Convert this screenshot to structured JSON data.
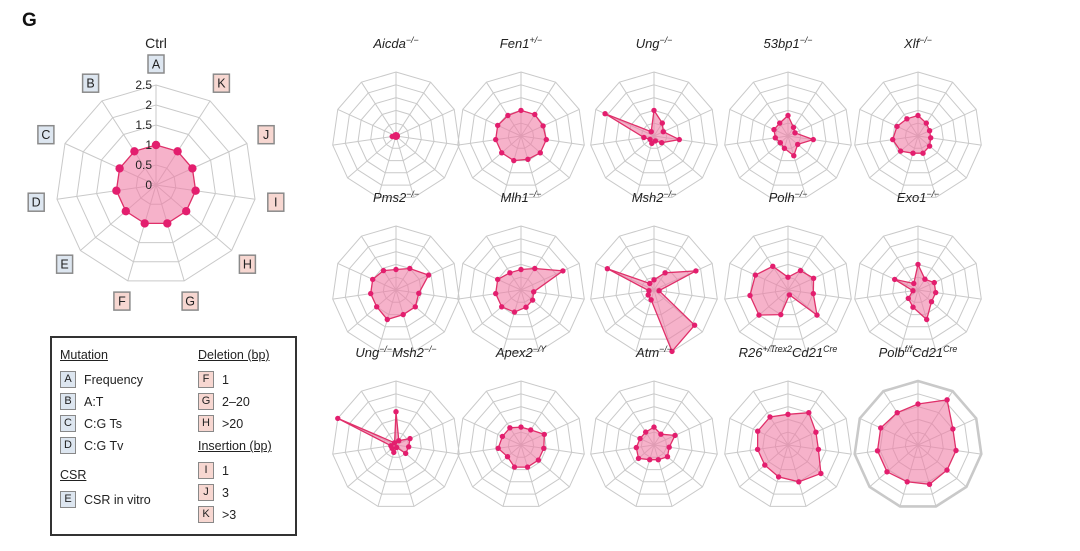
{
  "panel_label": "G",
  "colors": {
    "grid": "#c9c9c9",
    "fill": "#f07ea7",
    "stroke": "#e0306a",
    "point": "#e31e6e",
    "key_mutation_bg": "#dde6f0",
    "key_indel_bg": "#f7d7d1"
  },
  "axis_keys": [
    "A",
    "K",
    "J",
    "I",
    "H",
    "G",
    "F",
    "E",
    "D",
    "C",
    "B"
  ],
  "axis_key_groups": [
    "mutation",
    "insertion",
    "insertion",
    "insertion",
    "deletion",
    "deletion",
    "deletion",
    "csr",
    "mutation",
    "mutation",
    "mutation"
  ],
  "chart_data": [
    {
      "type": "radar",
      "title": "Ctrl",
      "title_sup": "",
      "rlim": [
        0,
        2.5
      ],
      "r_ticks": [
        "0",
        "0.5",
        "1",
        "1.5",
        "2",
        "2.5"
      ],
      "axes": [
        "A",
        "K",
        "J",
        "I",
        "H",
        "G",
        "F",
        "E",
        "D",
        "C",
        "B"
      ],
      "values": [
        1.0,
        1.0,
        1.0,
        1.0,
        1.0,
        1.0,
        1.0,
        1.0,
        1.0,
        1.0,
        1.0
      ]
    },
    {
      "type": "radar",
      "title": "Aicda",
      "title_sup": "−/−",
      "rlim": [
        0,
        2.5
      ],
      "axes": [
        "A",
        "K",
        "J",
        "I",
        "H",
        "G",
        "F",
        "E",
        "D",
        "C",
        "B"
      ],
      "values": [
        0.05,
        0.05,
        0.05,
        0.05,
        0.05,
        0.05,
        0.05,
        0.05,
        0.15,
        0.05,
        0.05
      ]
    },
    {
      "type": "radar",
      "title": "Fen1",
      "title_sup": "+/−",
      "rlim": [
        0,
        2.5
      ],
      "axes": [
        "A",
        "K",
        "J",
        "I",
        "H",
        "G",
        "F",
        "E",
        "D",
        "C",
        "B"
      ],
      "values": [
        1.0,
        1.0,
        0.95,
        1.0,
        1.0,
        0.95,
        1.0,
        1.0,
        1.0,
        1.0,
        0.95
      ]
    },
    {
      "type": "radar",
      "title": "Ung",
      "title_sup": "−/−",
      "rlim": [
        0,
        2.5
      ],
      "axes": [
        "A",
        "K",
        "J",
        "I",
        "H",
        "G",
        "F",
        "E",
        "D",
        "C",
        "B"
      ],
      "values": [
        1.0,
        0.6,
        0.4,
        1.0,
        0.4,
        0.2,
        0.3,
        0.2,
        0.4,
        2.1,
        0.2
      ]
    },
    {
      "type": "radar",
      "title": "53bp1",
      "title_sup": "−/−",
      "rlim": [
        0,
        2.5
      ],
      "axes": [
        "A",
        "K",
        "J",
        "I",
        "H",
        "G",
        "F",
        "E",
        "D",
        "C",
        "B"
      ],
      "values": [
        0.8,
        0.4,
        0.3,
        1.0,
        0.5,
        0.8,
        0.5,
        0.4,
        0.5,
        0.6,
        0.6
      ]
    },
    {
      "type": "radar",
      "title": "Xlf",
      "title_sup": "−/−",
      "rlim": [
        0,
        2.5
      ],
      "axes": [
        "A",
        "K",
        "J",
        "I",
        "H",
        "G",
        "F",
        "E",
        "D",
        "C",
        "B"
      ],
      "values": [
        0.8,
        0.6,
        0.5,
        0.5,
        0.6,
        0.7,
        0.7,
        0.9,
        1.0,
        0.9,
        0.8
      ]
    },
    {
      "type": "radar",
      "title": "Pms2",
      "title_sup": "−/−",
      "rlim": [
        0,
        2.5
      ],
      "axes": [
        "A",
        "K",
        "J",
        "I",
        "H",
        "G",
        "F",
        "E",
        "D",
        "C",
        "B"
      ],
      "values": [
        0.8,
        1.0,
        1.4,
        0.9,
        1.0,
        1.0,
        1.2,
        1.0,
        1.0,
        1.0,
        0.9
      ]
    },
    {
      "type": "radar",
      "title": "Mlh1",
      "title_sup": "−/−",
      "rlim": [
        0,
        2.5
      ],
      "axes": [
        "A",
        "K",
        "J",
        "I",
        "H",
        "G",
        "F",
        "E",
        "D",
        "C",
        "B"
      ],
      "values": [
        0.8,
        1.0,
        1.8,
        0.5,
        0.6,
        0.7,
        0.9,
        1.0,
        1.0,
        1.0,
        0.8
      ]
    },
    {
      "type": "radar",
      "title": "Msh2",
      "title_sup": "−/−",
      "rlim": [
        0,
        2.5
      ],
      "axes": [
        "A",
        "K",
        "J",
        "I",
        "H",
        "G",
        "F",
        "E",
        "D",
        "C",
        "B"
      ],
      "values": [
        0.4,
        0.8,
        1.8,
        0.2,
        2.1,
        2.5,
        0.4,
        0.3,
        0.2,
        2.0,
        0.3
      ]
    },
    {
      "type": "radar",
      "title": "Polh",
      "title_sup": "−/−",
      "rlim": [
        0,
        2.5
      ],
      "axes": [
        "A",
        "K",
        "J",
        "I",
        "H",
        "G",
        "F",
        "E",
        "D",
        "C",
        "B"
      ],
      "values": [
        0.5,
        0.9,
        1.1,
        1.0,
        1.5,
        0.2,
        1.0,
        1.5,
        1.5,
        1.4,
        1.1
      ]
    },
    {
      "type": "radar",
      "title": "Exo1",
      "title_sup": "−/−",
      "rlim": [
        0,
        2.5
      ],
      "axes": [
        "A",
        "K",
        "J",
        "I",
        "H",
        "G",
        "F",
        "E",
        "D",
        "C",
        "B"
      ],
      "values": [
        1.0,
        0.5,
        0.7,
        0.7,
        0.7,
        1.2,
        0.7,
        0.5,
        0.2,
        1.0,
        0.3
      ]
    },
    {
      "type": "radar",
      "title": "Ung",
      "title_sup": "−/−",
      "title2": "Msh2",
      "title2_sup": "−/−",
      "rlim": [
        0,
        2.5
      ],
      "axes": [
        "A",
        "K",
        "J",
        "I",
        "H",
        "G",
        "F",
        "E",
        "D",
        "C",
        "B"
      ],
      "values": [
        1.3,
        0.2,
        0.6,
        0.5,
        0.5,
        0.1,
        0.3,
        0.2,
        0.2,
        2.5,
        0.1
      ]
    },
    {
      "type": "radar",
      "title": "Apex2",
      "title_sup": "−/Y",
      "rlim": [
        0,
        2.5
      ],
      "axes": [
        "A",
        "K",
        "J",
        "I",
        "H",
        "G",
        "F",
        "E",
        "D",
        "C",
        "B"
      ],
      "values": [
        0.7,
        0.7,
        1.0,
        0.9,
        0.9,
        0.9,
        0.9,
        0.7,
        0.9,
        0.8,
        0.8
      ]
    },
    {
      "type": "radar",
      "title": "Atm",
      "title_sup": "−/−",
      "rlim": [
        0,
        2.5
      ],
      "axes": [
        "A",
        "K",
        "J",
        "I",
        "H",
        "G",
        "F",
        "E",
        "D",
        "C",
        "B"
      ],
      "values": [
        0.7,
        0.5,
        0.9,
        0.6,
        0.7,
        0.6,
        0.6,
        0.8,
        0.7,
        0.6,
        0.6
      ]
    },
    {
      "type": "radar",
      "title": "R26",
      "title_sup": "+/Trex2",
      "title2": "Cd21",
      "title2_sup": "Cre",
      "rlim": [
        0,
        2.5
      ],
      "axes": [
        "A",
        "K",
        "J",
        "I",
        "H",
        "G",
        "F",
        "E",
        "D",
        "C",
        "B"
      ],
      "values": [
        1.2,
        1.5,
        1.2,
        1.2,
        1.7,
        1.5,
        1.3,
        1.2,
        1.2,
        1.3,
        1.3
      ]
    },
    {
      "type": "radar",
      "title": "Polb",
      "title_sup": "f/f",
      "title2": "Cd21",
      "title2_sup": "Cre",
      "rlim": [
        0,
        2.5
      ],
      "axes": [
        "A",
        "K",
        "J",
        "I",
        "H",
        "G",
        "F",
        "E",
        "D",
        "C",
        "B"
      ],
      "values": [
        1.6,
        2.1,
        1.5,
        1.5,
        1.5,
        1.6,
        1.5,
        1.6,
        1.6,
        1.6,
        1.5
      ]
    }
  ],
  "legend": {
    "mutation_head": "Mutation",
    "mutation": [
      {
        "key": "A",
        "label": "Frequency"
      },
      {
        "key": "B",
        "label": "A:T"
      },
      {
        "key": "C",
        "label": "C:G Ts"
      },
      {
        "key": "D",
        "label": "C:G Tv"
      }
    ],
    "csr_head": "CSR",
    "csr": [
      {
        "key": "E",
        "label": "CSR in vitro"
      }
    ],
    "deletion_head": "Deletion (bp)",
    "deletion": [
      {
        "key": "F",
        "label": "1"
      },
      {
        "key": "G",
        "label": "2–20"
      },
      {
        "key": "H",
        "label": ">20"
      }
    ],
    "insertion_head": "Insertion (bp)",
    "insertion": [
      {
        "key": "I",
        "label": "1"
      },
      {
        "key": "J",
        "label": "3"
      },
      {
        "key": "K",
        "label": ">3"
      }
    ]
  }
}
